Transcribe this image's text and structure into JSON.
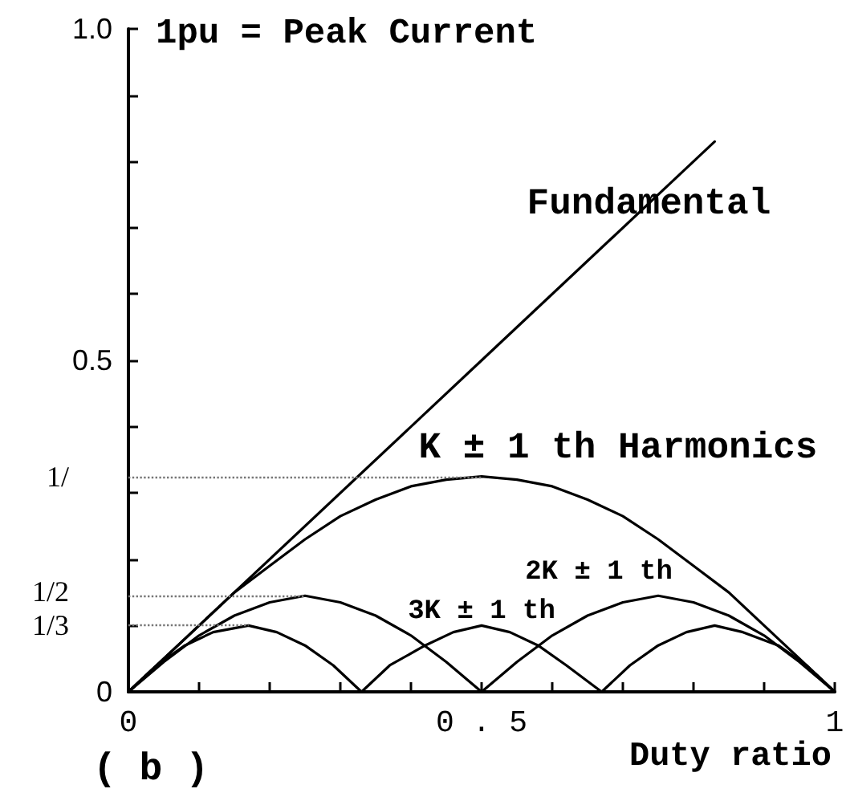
{
  "chart_data": {
    "type": "line",
    "xlabel": "Duty ratio",
    "annotations": [
      "1pu = Peak Current",
      "( b )",
      "1/",
      "1/2",
      "1/3"
    ],
    "xlim": [
      0,
      1
    ],
    "xticks": [
      0,
      {
        "value": 0.1,
        "label": null
      },
      {
        "value": 0.2,
        "label": null
      },
      {
        "value": 0.3,
        "label": null
      },
      {
        "value": 0.4,
        "label": null
      },
      {
        "value": 0.5,
        "label": "0 . 5"
      },
      {
        "value": 0.6,
        "label": null
      },
      {
        "value": 0.7,
        "label": null
      },
      {
        "value": 0.8,
        "label": null
      },
      {
        "value": 0.9,
        "label": null
      },
      1
    ],
    "ylim": [
      0,
      1
    ],
    "yticks": [
      0,
      {
        "value": 0.1,
        "label": null
      },
      {
        "value": 0.2,
        "label": null
      },
      {
        "value": 0.3,
        "label": null
      },
      {
        "value": 0.4,
        "label": null
      },
      0.5,
      {
        "value": 0.6,
        "label": null
      },
      {
        "value": 0.7,
        "label": null
      },
      {
        "value": 0.8,
        "label": null
      },
      {
        "value": 0.9,
        "label": null
      },
      {
        "value": 1,
        "label": "1.0"
      }
    ],
    "series": [
      {
        "name": "Fundamental",
        "color": "#000000",
        "x": [
          0,
          0.5,
          0.83
        ],
        "values": [
          0,
          0.5,
          0.83
        ]
      },
      {
        "name": "K ± 1 th Harmonics",
        "color": "#000000",
        "x": [
          0,
          0.05,
          0.1,
          0.15,
          0.2,
          0.25,
          0.3,
          0.35,
          0.4,
          0.45,
          0.5,
          0.55,
          0.6,
          0.65,
          0.7,
          0.75,
          0.8,
          0.85,
          0.9,
          0.95,
          1
        ],
        "values": [
          0,
          0.05,
          0.1,
          0.15,
          0.19,
          0.23,
          0.265,
          0.29,
          0.31,
          0.32,
          0.325,
          0.32,
          0.31,
          0.29,
          0.265,
          0.23,
          0.19,
          0.15,
          0.1,
          0.05,
          0
        ]
      },
      {
        "name": "2K ± 1 th",
        "color": "#000000",
        "x": [
          0,
          0.05,
          0.1,
          0.15,
          0.2,
          0.25,
          0.3,
          0.35,
          0.4,
          0.45,
          0.5,
          0.55,
          0.6,
          0.65,
          0.7,
          0.75,
          0.8,
          0.85,
          0.9,
          0.95,
          1
        ],
        "values": [
          0,
          0.045,
          0.085,
          0.115,
          0.135,
          0.145,
          0.135,
          0.115,
          0.085,
          0.045,
          0,
          0.045,
          0.085,
          0.115,
          0.135,
          0.145,
          0.135,
          0.115,
          0.085,
          0.045,
          0
        ]
      },
      {
        "name": "3K ± 1 th",
        "color": "#000000",
        "x": [
          0,
          0.04,
          0.08,
          0.12,
          0.17,
          0.21,
          0.25,
          0.29,
          0.33,
          0.37,
          0.42,
          0.46,
          0.5,
          0.54,
          0.58,
          0.62,
          0.67,
          0.71,
          0.75,
          0.79,
          0.83,
          0.87,
          0.92,
          0.96,
          1
        ],
        "values": [
          0,
          0.04,
          0.07,
          0.09,
          0.1,
          0.09,
          0.07,
          0.04,
          0,
          0.04,
          0.07,
          0.09,
          0.1,
          0.09,
          0.07,
          0.04,
          0,
          0.04,
          0.07,
          0.09,
          0.1,
          0.09,
          0.07,
          0.04,
          0
        ]
      }
    ],
    "ref_lines": [
      {
        "axis": "y",
        "value": 0.325,
        "line_style": "dotted",
        "color": "#777777"
      },
      {
        "axis": "y",
        "value": 0.145,
        "line_style": "dotted",
        "color": "#777777"
      },
      {
        "axis": "y",
        "value": 0.1,
        "line_style": "dotted",
        "color": "#777777"
      }
    ]
  }
}
